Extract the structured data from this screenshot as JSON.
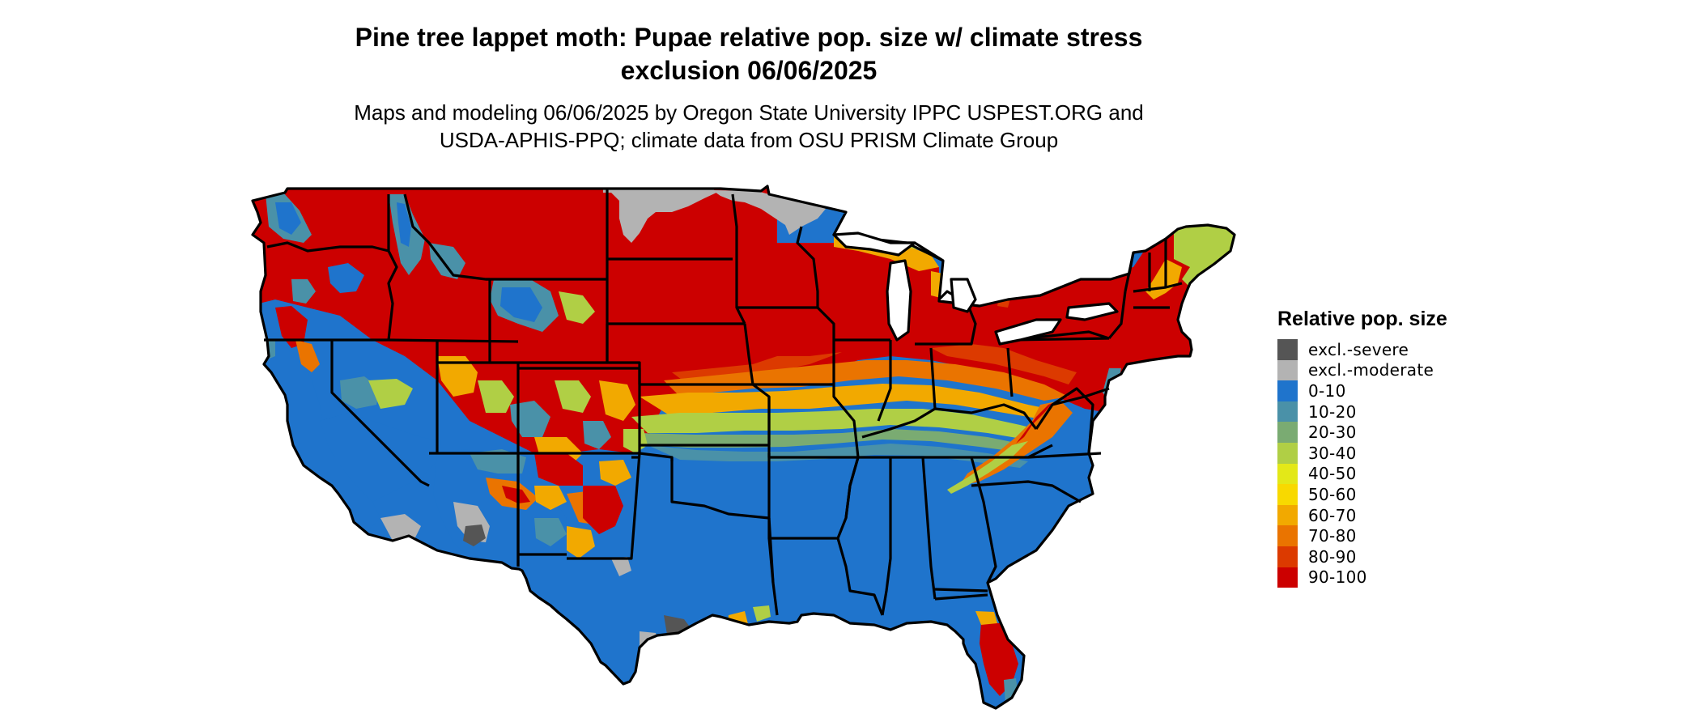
{
  "title_line1": "Pine tree lappet moth: Pupae relative pop. size w/ climate stress",
  "title_line2": "exclusion 06/06/2025",
  "subtitle_line1": "Maps and modeling 06/06/2025 by Oregon State University IPPC USPEST.ORG and",
  "subtitle_line2": "USDA-APHIS-PPQ; climate data from OSU PRISM Climate Group",
  "legend": {
    "title": "Relative pop. size",
    "entries": [
      {
        "label": "excl.-severe",
        "color": "#555555"
      },
      {
        "label": "excl.-moderate",
        "color": "#b3b3b3"
      },
      {
        "label": "0-10",
        "color": "#1f74cc"
      },
      {
        "label": "10-20",
        "color": "#4a91a8"
      },
      {
        "label": "20-30",
        "color": "#7aab72"
      },
      {
        "label": "30-40",
        "color": "#b0cf45"
      },
      {
        "label": "40-50",
        "color": "#e3e818"
      },
      {
        "label": "50-60",
        "color": "#f8d900"
      },
      {
        "label": "60-70",
        "color": "#f2a900"
      },
      {
        "label": "70-80",
        "color": "#ea7400"
      },
      {
        "label": "80-90",
        "color": "#dc3a00"
      },
      {
        "label": "90-100",
        "color": "#cc0000"
      }
    ]
  }
}
